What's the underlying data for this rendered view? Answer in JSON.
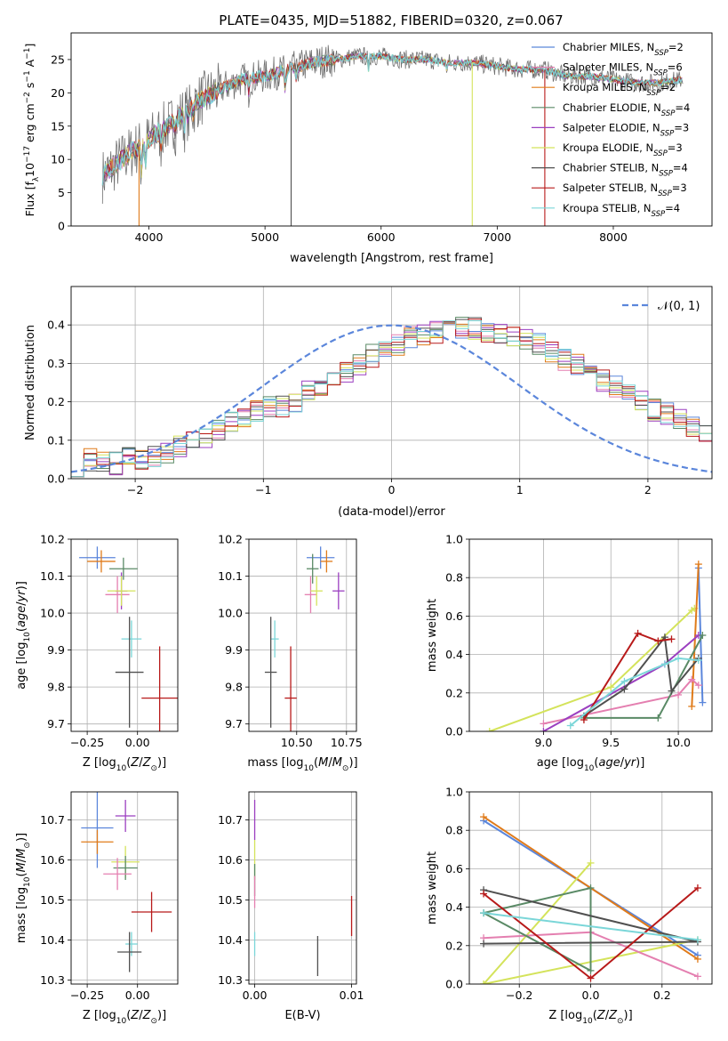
{
  "figure_title": "PLATE=0435, MJD=51882, FIBERID=0320, z=0.067",
  "colors": {
    "Chabrier MILES": "#5b86db",
    "Salpeter MILES": "#e47fb0",
    "Kroupa MILES": "#e07b1a",
    "Chabrier ELODIE": "#5a8a66",
    "Salpeter ELODIE": "#9b3fc0",
    "Kroupa ELODIE": "#d4e35b",
    "Chabrier STELIB": "#505050",
    "Salpeter STELIB": "#b81a1a",
    "Kroupa STELIB": "#7ad6d8",
    "gaussian": "#5b86db"
  },
  "model_order": [
    "Chabrier MILES",
    "Salpeter MILES",
    "Kroupa MILES",
    "Chabrier ELODIE",
    "Salpeter ELODIE",
    "Kroupa ELODIE",
    "Chabrier STELIB",
    "Salpeter STELIB",
    "Kroupa STELIB"
  ],
  "chart_data": [
    {
      "id": "spectrum",
      "type": "line",
      "title": "PLATE=0435, MJD=51882, FIBERID=0320, z=0.067",
      "xlabel": "wavelength [Angstrom, rest frame]",
      "ylabel": "Flux [f_λ 10^-17 erg cm^-2 s^-1 A^-1]",
      "xlim": [
        3330,
        8850
      ],
      "ylim": [
        0,
        29
      ],
      "xticks": [
        4000,
        5000,
        6000,
        7000,
        8000
      ],
      "yticks": [
        0,
        5,
        10,
        15,
        20,
        25
      ],
      "grid": false,
      "legend_position": "top-right",
      "legend": [
        {
          "model": "Chabrier MILES",
          "label": "Chabrier MILES, N",
          "sub": "SSP",
          "suffix": "=2"
        },
        {
          "model": "Salpeter MILES",
          "label": "Salpeter MILES, N",
          "sub": "SSP",
          "suffix": "=6"
        },
        {
          "model": "Kroupa MILES",
          "label": "Kroupa MILES, N",
          "sub": "SSP",
          "suffix": "=2"
        },
        {
          "model": "Chabrier ELODIE",
          "label": "Chabrier ELODIE, N",
          "sub": "SSP",
          "suffix": "=4"
        },
        {
          "model": "Salpeter ELODIE",
          "label": "Salpeter ELODIE, N",
          "sub": "SSP",
          "suffix": "=3"
        },
        {
          "model": "Kroupa ELODIE",
          "label": "Kroupa ELODIE, N",
          "sub": "SSP",
          "suffix": "=3"
        },
        {
          "model": "Chabrier STELIB",
          "label": "Chabrier STELIB, N",
          "sub": "SSP",
          "suffix": "=4"
        },
        {
          "model": "Salpeter STELIB",
          "label": "Salpeter STELIB, N",
          "sub": "SSP",
          "suffix": "=3"
        },
        {
          "model": "Kroupa STELIB",
          "label": "Kroupa STELIB, N",
          "sub": "SSP",
          "suffix": "=4"
        }
      ],
      "continuum": {
        "x": [
          3600,
          3800,
          4000,
          4200,
          4400,
          4600,
          4800,
          5000,
          5200,
          5400,
          5600,
          5800,
          6000,
          6200,
          6400,
          6600,
          6800,
          7000,
          7200,
          7400,
          7600,
          7800,
          8000,
          8200,
          8400,
          8600
        ],
        "y": [
          7.5,
          10.5,
          13,
          15.5,
          18.5,
          20.5,
          22,
          22.5,
          23.5,
          24.5,
          25,
          25.5,
          25.5,
          25,
          25,
          24.5,
          24.5,
          24,
          23.5,
          23.5,
          22.5,
          22.5,
          22,
          21.5,
          21.5,
          22
        ]
      },
      "dropouts": [
        {
          "x": 3915,
          "model": "Kroupa MILES"
        },
        {
          "x": 5225,
          "model": "Chabrier STELIB"
        },
        {
          "x": 6785,
          "model": "Kroupa ELODIE"
        },
        {
          "x": 7410,
          "model": "Salpeter STELIB"
        }
      ]
    },
    {
      "id": "residual-histogram",
      "type": "line",
      "xlabel": "(data-model)/error",
      "ylabel": "Normed distribution",
      "xlim": [
        -2.5,
        2.5
      ],
      "ylim": [
        0,
        0.5
      ],
      "xticks": [
        -2,
        -1,
        0,
        1,
        2
      ],
      "yticks": [
        0.0,
        0.1,
        0.2,
        0.3,
        0.4
      ],
      "grid": true,
      "legend_position": "top-right",
      "gaussian_label": "𝒩(0, 1)",
      "bin_width": 0.1,
      "bins_from": -2.5,
      "density": [
        0.035,
        0.05,
        0.045,
        0.04,
        0.055,
        0.05,
        0.06,
        0.07,
        0.085,
        0.095,
        0.11,
        0.13,
        0.145,
        0.16,
        0.175,
        0.185,
        0.185,
        0.2,
        0.225,
        0.24,
        0.27,
        0.28,
        0.3,
        0.32,
        0.33,
        0.35,
        0.37,
        0.375,
        0.38,
        0.39,
        0.395,
        0.39,
        0.38,
        0.375,
        0.37,
        0.36,
        0.35,
        0.33,
        0.31,
        0.3,
        0.28,
        0.255,
        0.24,
        0.22,
        0.2,
        0.18,
        0.17,
        0.15,
        0.13,
        0.12,
        0.1,
        0.09,
        0.085,
        0.07,
        0.06,
        0.055,
        0.05,
        0.05,
        0.04,
        0.035
      ]
    },
    {
      "id": "age-vs-Z",
      "type": "scatter",
      "xlabel": "Z [log10(Z/Z⊙)]",
      "ylabel": "age  [log10(age/yr)]",
      "xlim": [
        -0.33,
        0.2
      ],
      "ylim": [
        9.68,
        10.2
      ],
      "xticks": [
        -0.25,
        0.0
      ],
      "yticks": [
        9.7,
        9.8,
        9.9,
        10.0,
        10.1,
        10.2
      ],
      "grid": true,
      "points": [
        {
          "model": "Chabrier MILES",
          "x": -0.2,
          "y": 10.15,
          "xerr": 0.09,
          "yerr": 0.03
        },
        {
          "model": "Kroupa MILES",
          "x": -0.18,
          "y": 10.14,
          "xerr": 0.07,
          "yerr": 0.03
        },
        {
          "model": "Chabrier ELODIE",
          "x": -0.07,
          "y": 10.12,
          "xerr": 0.07,
          "yerr": 0.03
        },
        {
          "model": "Salpeter MILES",
          "x": -0.1,
          "y": 10.05,
          "xerr": 0.06,
          "yerr": 0.05
        },
        {
          "model": "Salpeter ELODIE",
          "x": -0.08,
          "y": 10.06,
          "xerr": 0.03,
          "yerr": 0.05
        },
        {
          "model": "Kroupa ELODIE",
          "x": -0.08,
          "y": 10.06,
          "xerr": 0.07,
          "yerr": 0.04
        },
        {
          "model": "Kroupa STELIB",
          "x": -0.03,
          "y": 9.93,
          "xerr": 0.05,
          "yerr": 0.05
        },
        {
          "model": "Chabrier STELIB",
          "x": -0.04,
          "y": 9.84,
          "xerr": 0.07,
          "yerr": 0.15
        },
        {
          "model": "Salpeter STELIB",
          "x": 0.11,
          "y": 9.77,
          "xerr": 0.09,
          "yerr": 0.14
        }
      ]
    },
    {
      "id": "age-vs-mass",
      "type": "scatter",
      "xlabel": "mass [log10(M/M⊙)]",
      "ylabel": "",
      "xlim": [
        10.26,
        10.8
      ],
      "ylim": [
        9.68,
        10.2
      ],
      "xticks": [
        10.5,
        10.75
      ],
      "yticks": [
        9.7,
        9.8,
        9.9,
        10.0,
        10.1,
        10.2
      ],
      "grid": true,
      "points": [
        {
          "model": "Chabrier MILES",
          "x": 10.62,
          "y": 10.15,
          "xerr": 0.07,
          "yerr": 0.03
        },
        {
          "model": "Kroupa MILES",
          "x": 10.65,
          "y": 10.14,
          "xerr": 0.03,
          "yerr": 0.03
        },
        {
          "model": "Chabrier ELODIE",
          "x": 10.58,
          "y": 10.12,
          "xerr": 0.03,
          "yerr": 0.04
        },
        {
          "model": "Salpeter MILES",
          "x": 10.57,
          "y": 10.05,
          "xerr": 0.03,
          "yerr": 0.05
        },
        {
          "model": "Salpeter ELODIE",
          "x": 10.71,
          "y": 10.06,
          "xerr": 0.03,
          "yerr": 0.05
        },
        {
          "model": "Kroupa ELODIE",
          "x": 10.6,
          "y": 10.06,
          "xerr": 0.03,
          "yerr": 0.04
        },
        {
          "model": "Kroupa STELIB",
          "x": 10.39,
          "y": 9.93,
          "xerr": 0.02,
          "yerr": 0.05
        },
        {
          "model": "Chabrier STELIB",
          "x": 10.37,
          "y": 9.84,
          "xerr": 0.03,
          "yerr": 0.15
        },
        {
          "model": "Salpeter STELIB",
          "x": 10.47,
          "y": 9.77,
          "xerr": 0.03,
          "yerr": 0.14
        }
      ]
    },
    {
      "id": "massweight-vs-age",
      "type": "line",
      "xlabel": "age  [log10(age/yr)]",
      "ylabel": "mass weight",
      "xlim": [
        8.45,
        10.25
      ],
      "ylim": [
        0,
        1
      ],
      "xticks": [
        9.0,
        9.5,
        10.0
      ],
      "yticks": [
        0.0,
        0.2,
        0.4,
        0.6,
        0.8,
        1.0
      ],
      "grid": true,
      "series": [
        {
          "model": "Kroupa ELODIE",
          "x": [
            8.6,
            9.5,
            10.1,
            10.12
          ],
          "y": [
            0.0,
            0.23,
            0.63,
            0.64
          ]
        },
        {
          "model": "Chabrier MILES",
          "x": [
            10.15,
            10.18
          ],
          "y": [
            0.85,
            0.15
          ]
        },
        {
          "model": "Kroupa MILES",
          "x": [
            10.1,
            10.15
          ],
          "y": [
            0.13,
            0.87
          ]
        },
        {
          "model": "Salpeter MILES",
          "x": [
            9.0,
            10.0,
            10.1,
            10.15
          ],
          "y": [
            0.04,
            0.19,
            0.27,
            0.24
          ]
        },
        {
          "model": "Salpeter ELODIE",
          "x": [
            9.0,
            9.9,
            10.15
          ],
          "y": [
            0.0,
            0.35,
            0.5
          ]
        },
        {
          "model": "Chabrier ELODIE",
          "x": [
            9.3,
            9.85,
            10.18
          ],
          "y": [
            0.07,
            0.07,
            0.5
          ]
        },
        {
          "model": "Chabrier STELIB",
          "x": [
            9.3,
            9.6,
            9.9,
            9.95,
            10.15
          ],
          "y": [
            0.08,
            0.22,
            0.49,
            0.21,
            0.38
          ]
        },
        {
          "model": "Salpeter STELIB",
          "x": [
            9.3,
            9.7,
            9.85,
            9.95
          ],
          "y": [
            0.06,
            0.51,
            0.47,
            0.48
          ]
        },
        {
          "model": "Kroupa STELIB",
          "x": [
            9.2,
            9.6,
            9.9,
            10.0,
            10.15
          ],
          "y": [
            0.03,
            0.26,
            0.35,
            0.38,
            0.37
          ]
        }
      ]
    },
    {
      "id": "mass-vs-Z",
      "type": "scatter",
      "xlabel": "Z [log10(Z/Z⊙)]",
      "ylabel": "mass [log10(M/M⊙)]",
      "xlim": [
        -0.33,
        0.2
      ],
      "ylim": [
        10.29,
        10.77
      ],
      "xticks": [
        -0.25,
        0.0
      ],
      "yticks": [
        10.3,
        10.4,
        10.5,
        10.6,
        10.7
      ],
      "grid": true,
      "points": [
        {
          "model": "Salpeter ELODIE",
          "x": -0.06,
          "y": 10.71,
          "xerr": 0.05,
          "yerr": 0.04
        },
        {
          "model": "Chabrier MILES",
          "x": -0.2,
          "y": 10.68,
          "xerr": 0.08,
          "yerr": 0.1
        },
        {
          "model": "Kroupa MILES",
          "x": -0.2,
          "y": 10.645,
          "xerr": 0.08,
          "yerr": 0.03
        },
        {
          "model": "Kroupa ELODIE",
          "x": -0.06,
          "y": 10.595,
          "xerr": 0.07,
          "yerr": 0.04
        },
        {
          "model": "Chabrier ELODIE",
          "x": -0.06,
          "y": 10.58,
          "xerr": 0.06,
          "yerr": 0.03
        },
        {
          "model": "Salpeter MILES",
          "x": -0.1,
          "y": 10.565,
          "xerr": 0.07,
          "yerr": 0.04
        },
        {
          "model": "Salpeter STELIB",
          "x": 0.07,
          "y": 10.47,
          "xerr": 0.1,
          "yerr": 0.05
        },
        {
          "model": "Kroupa STELIB",
          "x": -0.03,
          "y": 10.39,
          "xerr": 0.03,
          "yerr": 0.03
        },
        {
          "model": "Chabrier STELIB",
          "x": -0.04,
          "y": 10.37,
          "xerr": 0.06,
          "yerr": 0.05
        }
      ]
    },
    {
      "id": "mass-vs-EBV",
      "type": "scatter",
      "xlabel": "E(B-V)",
      "ylabel": "",
      "xlim": [
        -0.0006,
        0.0105
      ],
      "ylim": [
        10.29,
        10.77
      ],
      "xticks": [
        0.0,
        0.01
      ],
      "yticks": [
        10.3,
        10.4,
        10.5,
        10.6,
        10.7
      ],
      "grid": true,
      "points": [
        {
          "model": "Salpeter ELODIE",
          "x": 0.0,
          "y": 10.7,
          "yerr": 0.05
        },
        {
          "model": "Kroupa ELODIE",
          "x": 0.0,
          "y": 10.6,
          "yerr": 0.05
        },
        {
          "model": "Chabrier ELODIE",
          "x": 0.0,
          "y": 10.55,
          "yerr": 0.04
        },
        {
          "model": "Salpeter MILES",
          "x": 0.0,
          "y": 10.52,
          "yerr": 0.04
        },
        {
          "model": "Kroupa STELIB",
          "x": 0.0,
          "y": 10.39,
          "yerr": 0.03
        },
        {
          "model": "Chabrier STELIB",
          "x": 0.0065,
          "y": 10.36,
          "yerr": 0.05
        },
        {
          "model": "Salpeter STELIB",
          "x": 0.01,
          "y": 10.46,
          "yerr": 0.05
        }
      ]
    },
    {
      "id": "massweight-vs-Z",
      "type": "line",
      "xlabel": "Z [log10(Z/Z⊙)]",
      "ylabel": "mass weight",
      "xlim": [
        -0.34,
        0.34
      ],
      "ylim": [
        0,
        1
      ],
      "xticks": [
        -0.2,
        0.0,
        0.2
      ],
      "yticks": [
        0.0,
        0.2,
        0.4,
        0.6,
        0.8,
        1.0
      ],
      "grid": true,
      "series": [
        {
          "model": "Chabrier MILES",
          "x": [
            -0.3,
            0.3
          ],
          "y": [
            0.85,
            0.15
          ]
        },
        {
          "model": "Kroupa MILES",
          "x": [
            -0.3,
            0.3
          ],
          "y": [
            0.87,
            0.13
          ]
        },
        {
          "model": "Kroupa ELODIE",
          "x": [
            -0.3,
            0.0,
            -0.3,
            0.3
          ],
          "y": [
            0.0,
            0.63,
            0.0,
            0.23
          ]
        },
        {
          "model": "Salpeter MILES",
          "x": [
            -0.3,
            0.0,
            0.3
          ],
          "y": [
            0.24,
            0.27,
            0.04
          ]
        },
        {
          "model": "Chabrier ELODIE",
          "x": [
            -0.3,
            0.0,
            0.0,
            -0.3
          ],
          "y": [
            0.37,
            0.07,
            0.5,
            0.37
          ]
        },
        {
          "model": "Chabrier STELIB",
          "x": [
            -0.3,
            0.3,
            -0.3
          ],
          "y": [
            0.21,
            0.22,
            0.49
          ]
        },
        {
          "model": "Salpeter STELIB",
          "x": [
            -0.3,
            0.0,
            0.3
          ],
          "y": [
            0.47,
            0.03,
            0.5
          ]
        },
        {
          "model": "Kroupa STELIB",
          "x": [
            -0.3,
            0.3
          ],
          "y": [
            0.37,
            0.23
          ]
        }
      ]
    }
  ]
}
